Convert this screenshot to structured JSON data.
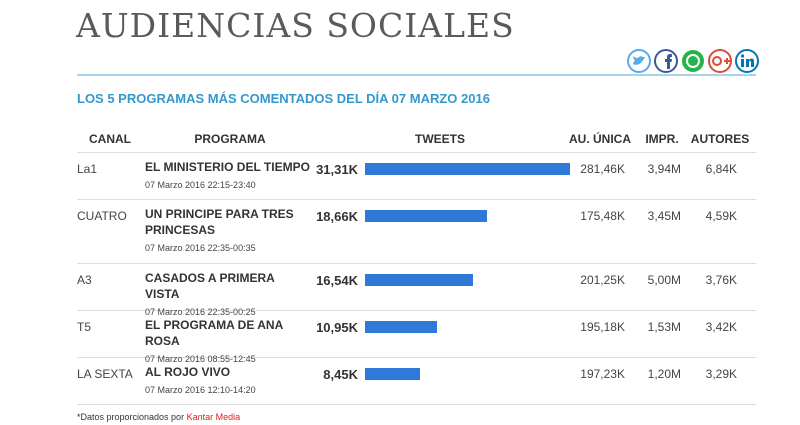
{
  "header": {
    "title": "AUDIENCIAS SOCIALES"
  },
  "subtitle": "LOS 5 PROGRAMAS MÁS COMENTADOS DEL DÍA 07 MARZO 2016",
  "table": {
    "columns": [
      "CANAL",
      "PROGRAMA",
      "TWEETS",
      "AU. ÚNICA",
      "IMPR.",
      "AUTORES"
    ],
    "rows": [
      {
        "canal": "La1",
        "programa": "EL MINISTERIO DEL TIEMPO",
        "horario": "07 Marzo 2016 22:15-23:40",
        "tweets": {
          "value": 31310,
          "label": "31,31K"
        },
        "au_unica": "281,46K",
        "impr": "3,94M",
        "autores": "6,84K"
      },
      {
        "canal": "CUATRO",
        "programa": "UN PRINCIPE PARA TRES PRINCESAS",
        "horario": "07 Marzo 2016 22:35-00:35",
        "tweets": {
          "value": 18660,
          "label": "18,66K"
        },
        "au_unica": "175,48K",
        "impr": "3,45M",
        "autores": "4,59K"
      },
      {
        "canal": "A3",
        "programa": "CASADOS A PRIMERA VISTA",
        "horario": "07 Marzo 2016 22:35-00:25",
        "tweets": {
          "value": 16540,
          "label": "16,54K"
        },
        "au_unica": "201,25K",
        "impr": "5,00M",
        "autores": "3,76K"
      },
      {
        "canal": "T5",
        "programa": "EL PROGRAMA DE ANA ROSA",
        "horario": "07 Marzo 2016 08:55-12:45",
        "tweets": {
          "value": 10950,
          "label": "10,95K"
        },
        "au_unica": "195,18K",
        "impr": "1,53M",
        "autores": "3,42K"
      },
      {
        "canal": "LA SEXTA",
        "programa": "AL ROJO VIVO",
        "horario": "07 Marzo 2016 12:10-14:20",
        "tweets": {
          "value": 8450,
          "label": "8,45K"
        },
        "au_unica": "197,23K",
        "impr": "1,20M",
        "autores": "3,29K"
      }
    ]
  },
  "footer": {
    "text": "*Datos proporcionados por ",
    "source": "Kantar Media"
  }
}
